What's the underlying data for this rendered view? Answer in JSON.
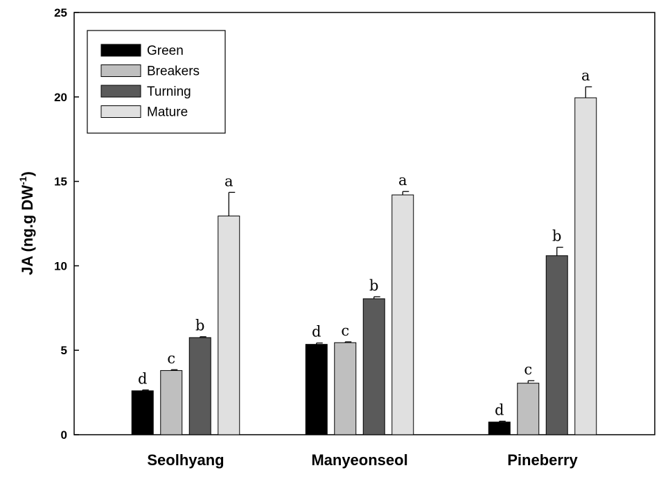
{
  "chart_data": {
    "type": "bar",
    "title": "",
    "xlabel": "",
    "ylabel": "JA (ng.g DW",
    "ylabel_superscript": "-1",
    "ylabel_close": ")",
    "ylim": [
      0,
      25
    ],
    "yticks": [
      "0",
      "5",
      "10",
      "15",
      "20",
      "25"
    ],
    "categories": [
      "Seolhyang",
      "Manyeonseol",
      "Pineberry"
    ],
    "legend_position": "top-left",
    "series": [
      {
        "name": "Green",
        "color": "#000000",
        "values": [
          2.6,
          5.35,
          0.75
        ],
        "errors": [
          0.05,
          0.08,
          0.05
        ],
        "letters": [
          "d",
          "d",
          "d"
        ]
      },
      {
        "name": "Breakers",
        "color": "#bfbfbf",
        "values": [
          3.8,
          5.45,
          3.05
        ],
        "errors": [
          0.05,
          0.05,
          0.15
        ],
        "letters": [
          "c",
          "c",
          "c"
        ]
      },
      {
        "name": "Turning",
        "color": "#5a5a5a",
        "values": [
          5.75,
          8.05,
          10.6
        ],
        "errors": [
          0.05,
          0.12,
          0.5
        ],
        "letters": [
          "b",
          "b",
          "b"
        ]
      },
      {
        "name": "Mature",
        "color": "#e0e0e0",
        "values": [
          12.95,
          14.2,
          19.95
        ],
        "errors": [
          1.4,
          0.2,
          0.65
        ],
        "letters": [
          "a",
          "a",
          "a"
        ]
      }
    ]
  }
}
